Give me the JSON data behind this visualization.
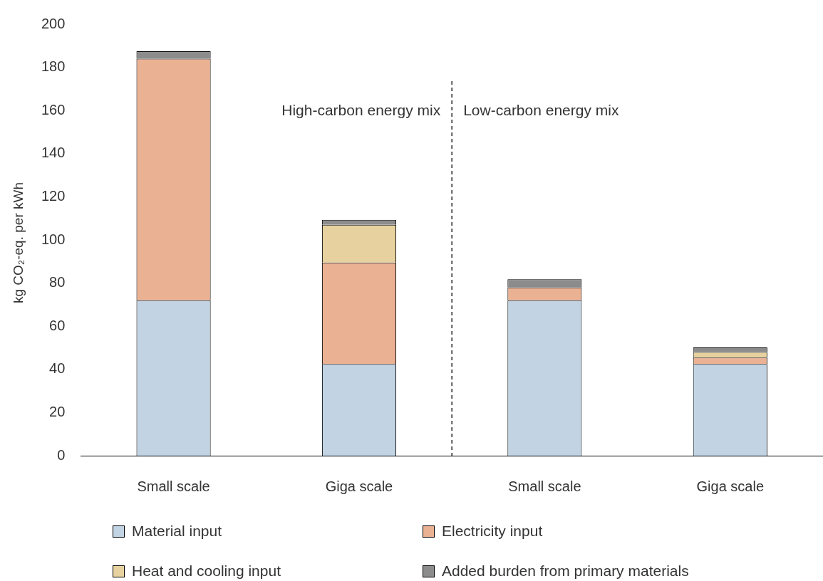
{
  "chart_data": {
    "type": "bar",
    "stacked": true,
    "ylabel": "kg CO₂-eq. per kWh",
    "categories": [
      "Small scale",
      "Giga scale",
      "Small scale",
      "Giga scale"
    ],
    "series": [
      {
        "name": "Material input",
        "color": "#c2d4e4",
        "values": [
          72,
          42.5,
          72,
          42.5
        ]
      },
      {
        "name": "Electricity input",
        "color": "#ebb193",
        "values": [
          112,
          47,
          6,
          3
        ]
      },
      {
        "name": "Heat and cooling input",
        "color": "#e7d29f",
        "values": [
          0,
          17.5,
          0,
          2.5
        ]
      },
      {
        "name": "Added burden from primary materials",
        "color": "#8c8c8c",
        "values": [
          3.5,
          2.3,
          3.8,
          2.2
        ]
      }
    ],
    "ylim": [
      0,
      200
    ],
    "yticks": [
      0,
      20,
      40,
      60,
      80,
      100,
      120,
      140,
      160,
      180,
      200
    ],
    "grid": false,
    "legend": "bottom",
    "annotations": [
      "High-carbon energy mix",
      "Low-carbon energy mix"
    ]
  }
}
